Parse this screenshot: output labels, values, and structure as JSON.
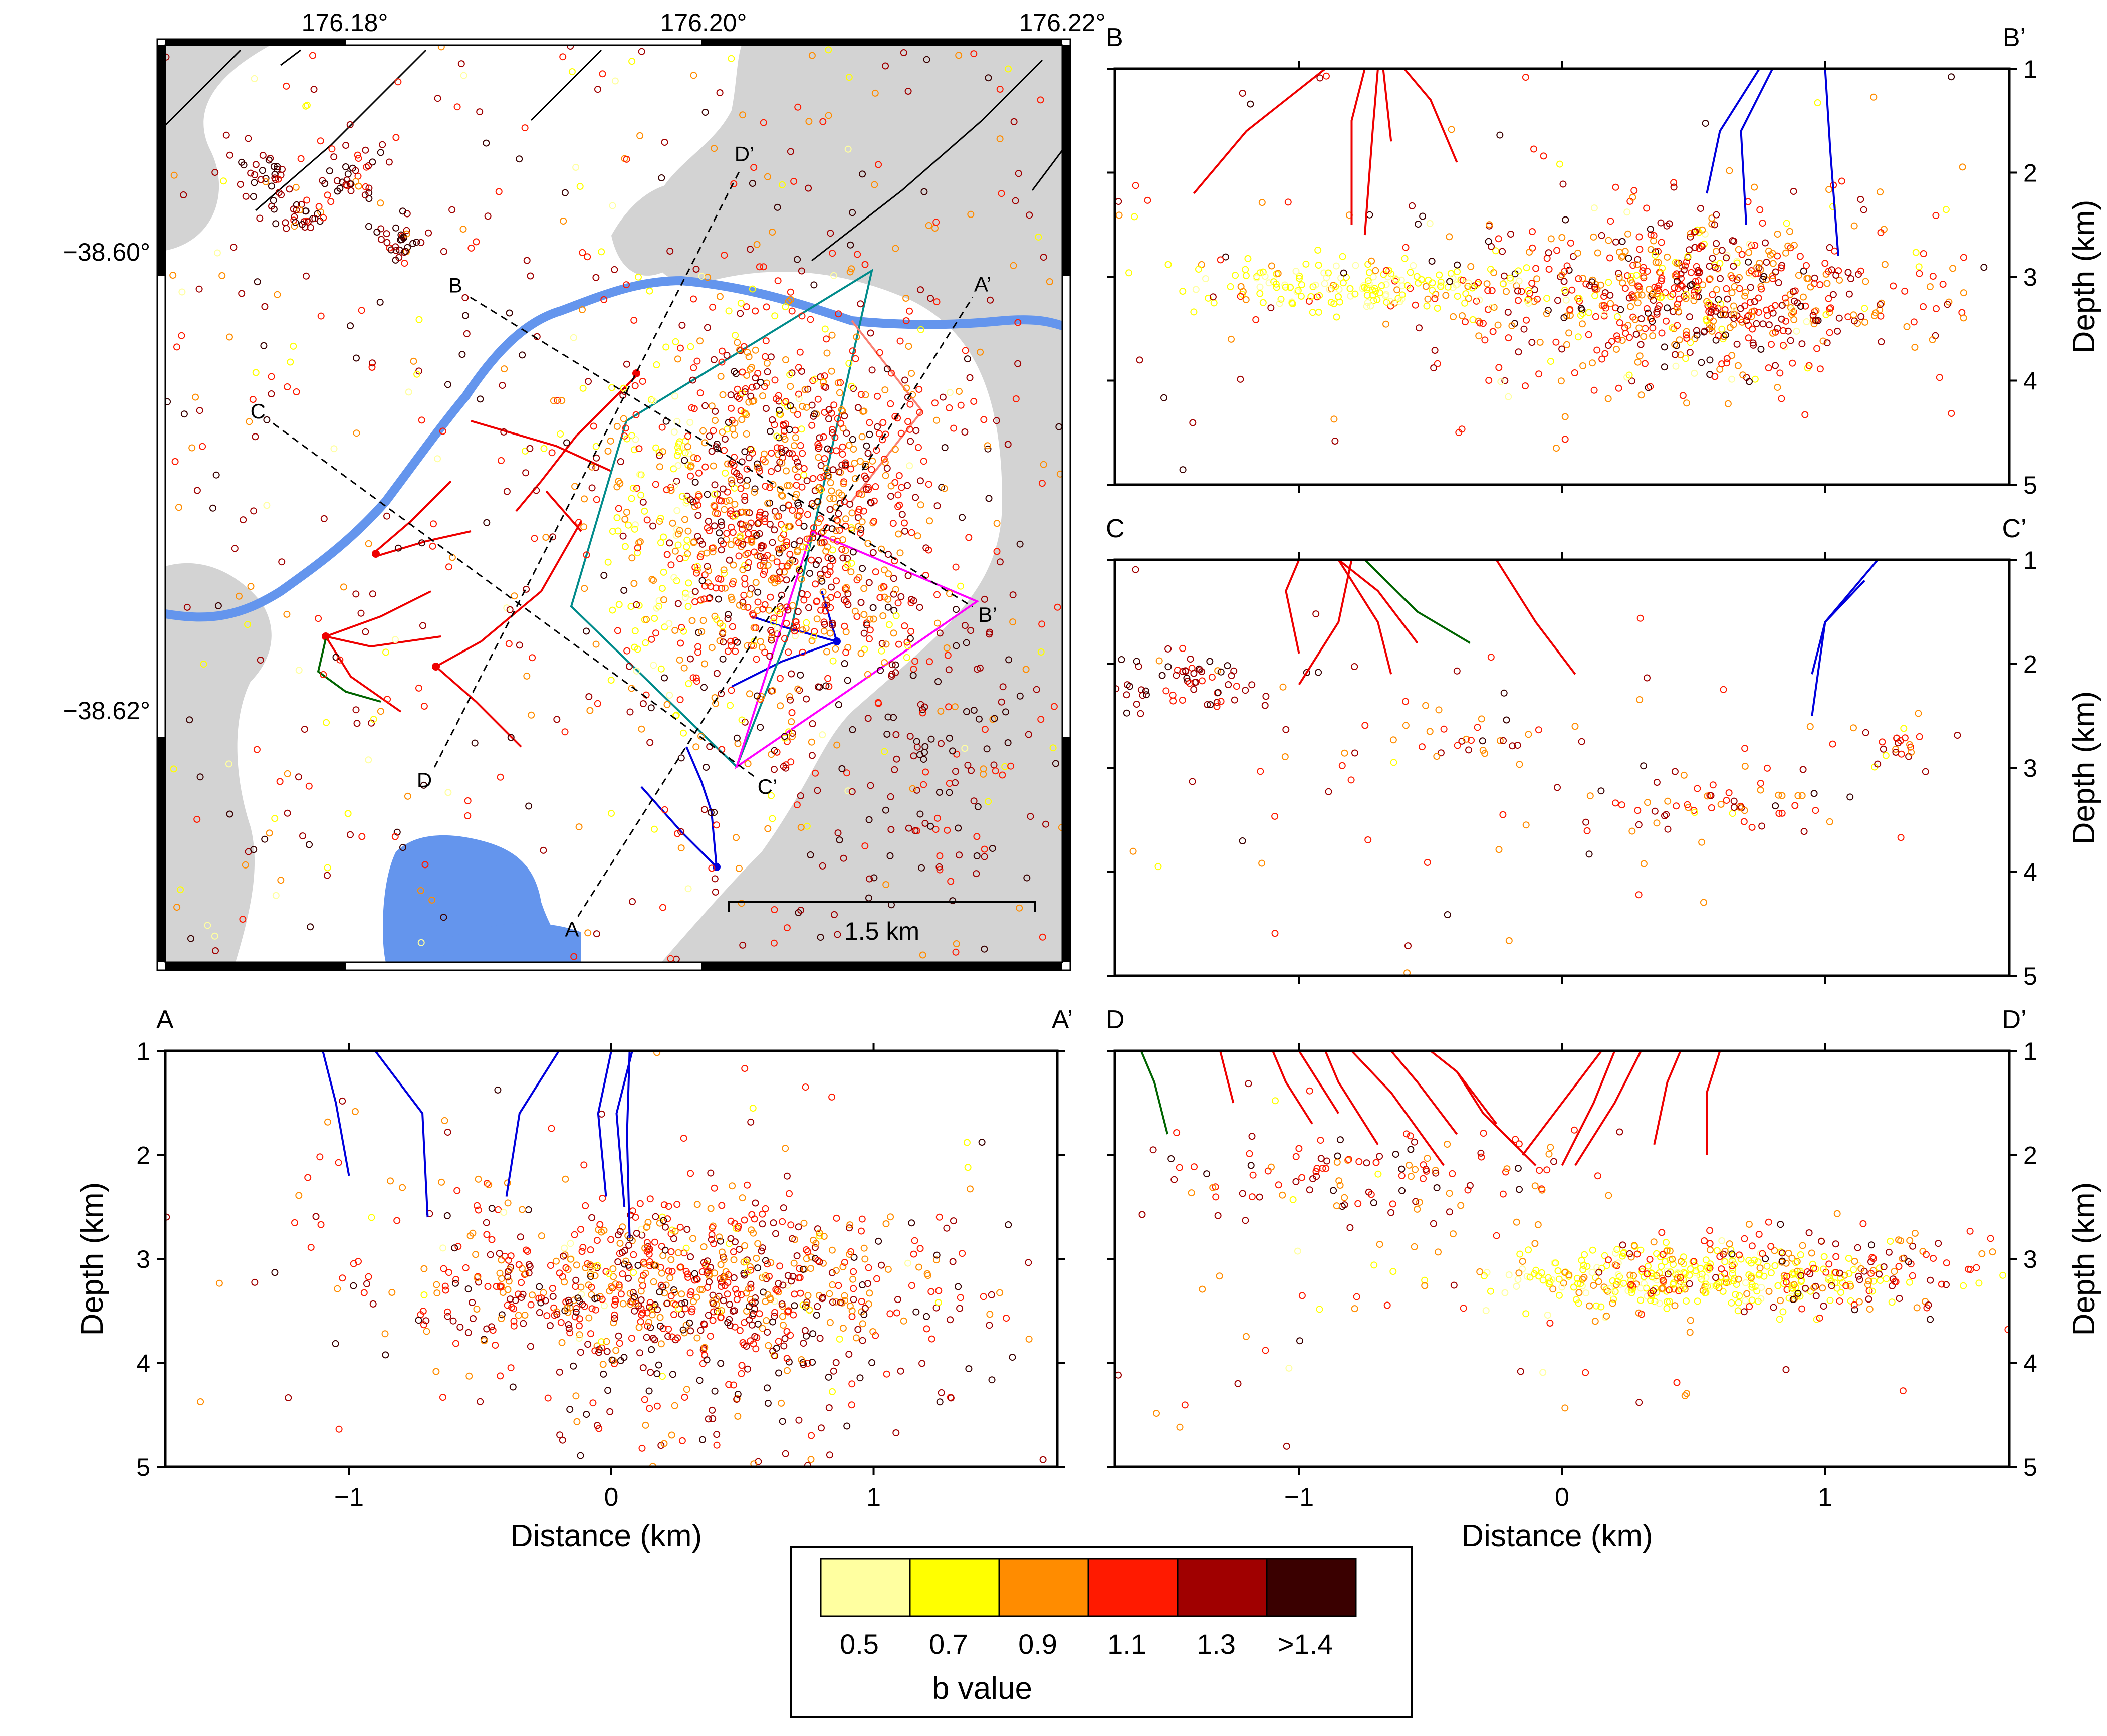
{
  "chart_data": [
    {
      "type": "scatter",
      "panel": "map",
      "x_ticks": [
        "176.18°",
        "176.20°",
        "176.22°"
      ],
      "x_tick_values": [
        176.18,
        176.2,
        176.22
      ],
      "y_ticks": [
        "−38.60°",
        "−38.62°"
      ],
      "y_tick_values": [
        -38.6,
        -38.62
      ],
      "xlim": [
        176.17,
        176.22
      ],
      "ylim": [
        -38.631,
        -38.591
      ],
      "profile_labels": [
        "A",
        "A’",
        "B",
        "B’",
        "C",
        "C’",
        "D",
        "D’"
      ],
      "profiles": [
        {
          "start": "A",
          "end": "A’",
          "x": [
            176.193,
            176.215
          ],
          "y": [
            -38.629,
            -38.602
          ]
        },
        {
          "start": "B",
          "end": "B’",
          "x": [
            176.187,
            176.215
          ],
          "y": [
            -38.602,
            -38.6155
          ]
        },
        {
          "start": "C",
          "end": "C’",
          "x": [
            176.176,
            176.203
          ],
          "y": [
            -38.6075,
            -38.623
          ]
        },
        {
          "start": "D",
          "end": "D’",
          "x": [
            176.185,
            176.202
          ],
          "y": [
            -38.6225,
            -38.5965
          ]
        }
      ],
      "scale_bar_label": "1.5 km",
      "grid": false
    },
    {
      "type": "scatter",
      "panel": "profile-B",
      "label_left": "B",
      "label_right": "B’",
      "ylabel": "Depth (km)",
      "xlim": [
        -1.7,
        1.7
      ],
      "ylim": [
        5,
        1
      ],
      "x_ticks": [
        -1,
        0,
        1
      ],
      "y_ticks": [
        "1",
        "2",
        "3",
        "4",
        "5"
      ]
    },
    {
      "type": "scatter",
      "panel": "profile-C",
      "label_left": "C",
      "label_right": "C’",
      "ylabel": "Depth (km)",
      "xlim": [
        -1.7,
        1.7
      ],
      "ylim": [
        5,
        1
      ],
      "x_ticks": [
        -1,
        0,
        1
      ],
      "y_ticks": [
        "1",
        "2",
        "3",
        "4",
        "5"
      ]
    },
    {
      "type": "scatter",
      "panel": "profile-A",
      "label_left": "A",
      "label_right": "A’",
      "xlabel": "Distance (km)",
      "ylabel": "Depth (km)",
      "xlim": [
        -1.7,
        1.7
      ],
      "ylim": [
        5,
        1
      ],
      "x_ticks": [
        "−1",
        "0",
        "1"
      ],
      "x_tick_values": [
        -1,
        0,
        1
      ],
      "y_ticks": [
        "1",
        "2",
        "3",
        "4",
        "5"
      ]
    },
    {
      "type": "scatter",
      "panel": "profile-D",
      "label_left": "D",
      "label_right": "D’",
      "xlabel": "Distance (km)",
      "ylabel": "Depth (km)",
      "xlim": [
        -1.7,
        1.7
      ],
      "ylim": [
        5,
        1
      ],
      "x_ticks": [
        "−1",
        "0",
        "1"
      ],
      "x_tick_values": [
        -1,
        0,
        1
      ],
      "y_ticks": [
        "1",
        "2",
        "3",
        "4",
        "5"
      ]
    }
  ],
  "colorbar": {
    "title": "b value",
    "bins": [
      {
        "label": "0.5",
        "color": "#ffffa0"
      },
      {
        "label": "0.7",
        "color": "#ffff00"
      },
      {
        "label": "0.9",
        "color": "#ff8c00"
      },
      {
        "label": "1.1",
        "color": "#ff1a00"
      },
      {
        "label": "1.3",
        "color": "#a00000"
      },
      {
        "label": ">1.4",
        "color": "#3a0000"
      }
    ]
  },
  "colors": {
    "land_shading": "#d3d3d3",
    "water": "#6495ed",
    "fault_red": "#ee0000",
    "fault_blue": "#0000dd",
    "fault_green": "#006400",
    "outline_teal": "#008b8b",
    "outline_magenta": "#ff00ff",
    "outline_salmon": "#fa8072"
  }
}
